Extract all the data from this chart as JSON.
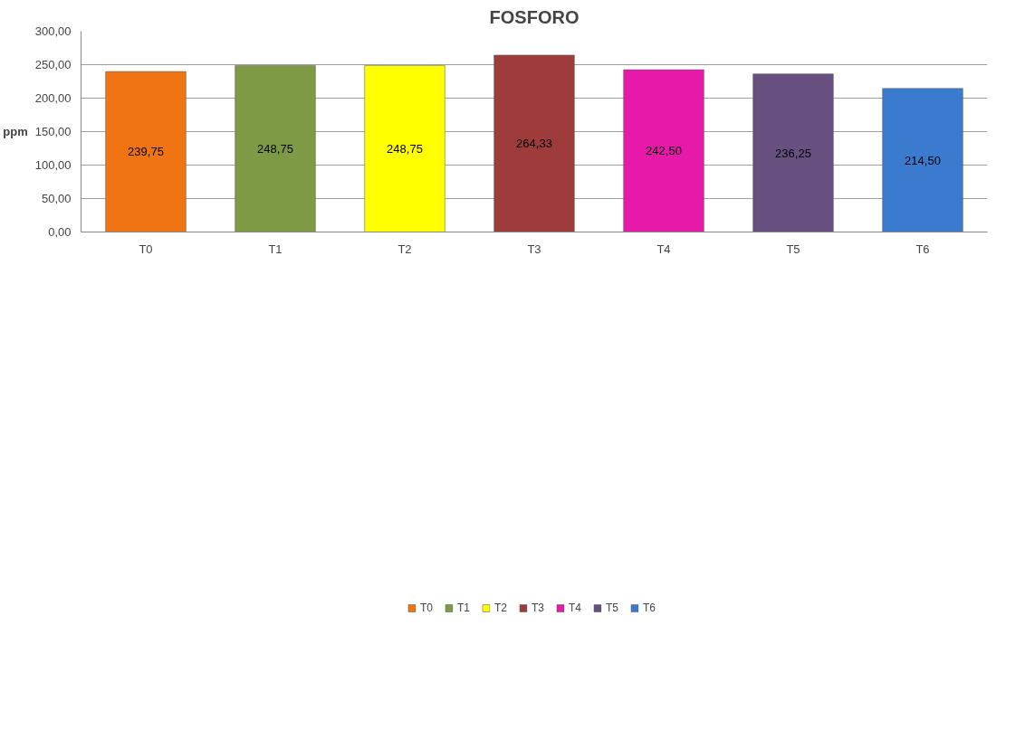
{
  "chart_data": {
    "type": "bar",
    "title": "FOSFORO",
    "ylabel": "ppm",
    "categories": [
      "T0",
      "T1",
      "T2",
      "T3",
      "T4",
      "T5",
      "T6"
    ],
    "series": [
      {
        "name": "T0",
        "color": "#f07414",
        "values": [
          239.75,
          null,
          null,
          null,
          null,
          null,
          null
        ],
        "value_labels": [
          "239,75",
          null,
          null,
          null,
          null,
          null,
          null
        ]
      },
      {
        "name": "T1",
        "color": "#7f9a44",
        "values": [
          null,
          248.75,
          null,
          null,
          null,
          null,
          null
        ],
        "value_labels": [
          null,
          "248,75",
          null,
          null,
          null,
          null,
          null
        ]
      },
      {
        "name": "T2",
        "color": "#ffff00",
        "values": [
          null,
          null,
          248.75,
          null,
          null,
          null,
          null
        ],
        "value_labels": [
          null,
          null,
          "248,75",
          null,
          null,
          null,
          null
        ]
      },
      {
        "name": "T3",
        "color": "#9e3b3b",
        "values": [
          null,
          null,
          null,
          264.33,
          null,
          null,
          null
        ],
        "value_labels": [
          null,
          null,
          null,
          "264,33",
          null,
          null,
          null
        ]
      },
      {
        "name": "T4",
        "color": "#e619a8",
        "values": [
          null,
          null,
          null,
          null,
          242.5,
          null,
          null
        ],
        "value_labels": [
          null,
          null,
          null,
          null,
          "242,50",
          null,
          null
        ]
      },
      {
        "name": "T5",
        "color": "#674f80",
        "values": [
          null,
          null,
          null,
          null,
          null,
          236.25,
          null
        ],
        "value_labels": [
          null,
          null,
          null,
          null,
          null,
          "236,25",
          null
        ]
      },
      {
        "name": "T6",
        "color": "#3a7bcf",
        "values": [
          null,
          null,
          null,
          null,
          null,
          null,
          214.5
        ],
        "value_labels": [
          null,
          null,
          null,
          null,
          null,
          null,
          "214,50"
        ]
      }
    ],
    "ylim": [
      0,
      300
    ],
    "yticks": [
      {
        "value": 0,
        "label": "0,00"
      },
      {
        "value": 50,
        "label": "50,00"
      },
      {
        "value": 100,
        "label": "100,00"
      },
      {
        "value": 150,
        "label": "150,00"
      },
      {
        "value": 200,
        "label": "200,00"
      },
      {
        "value": 250,
        "label": "250,00"
      },
      {
        "value": 300,
        "label": "300,00"
      }
    ],
    "grid": "y",
    "legend": "bottom"
  }
}
